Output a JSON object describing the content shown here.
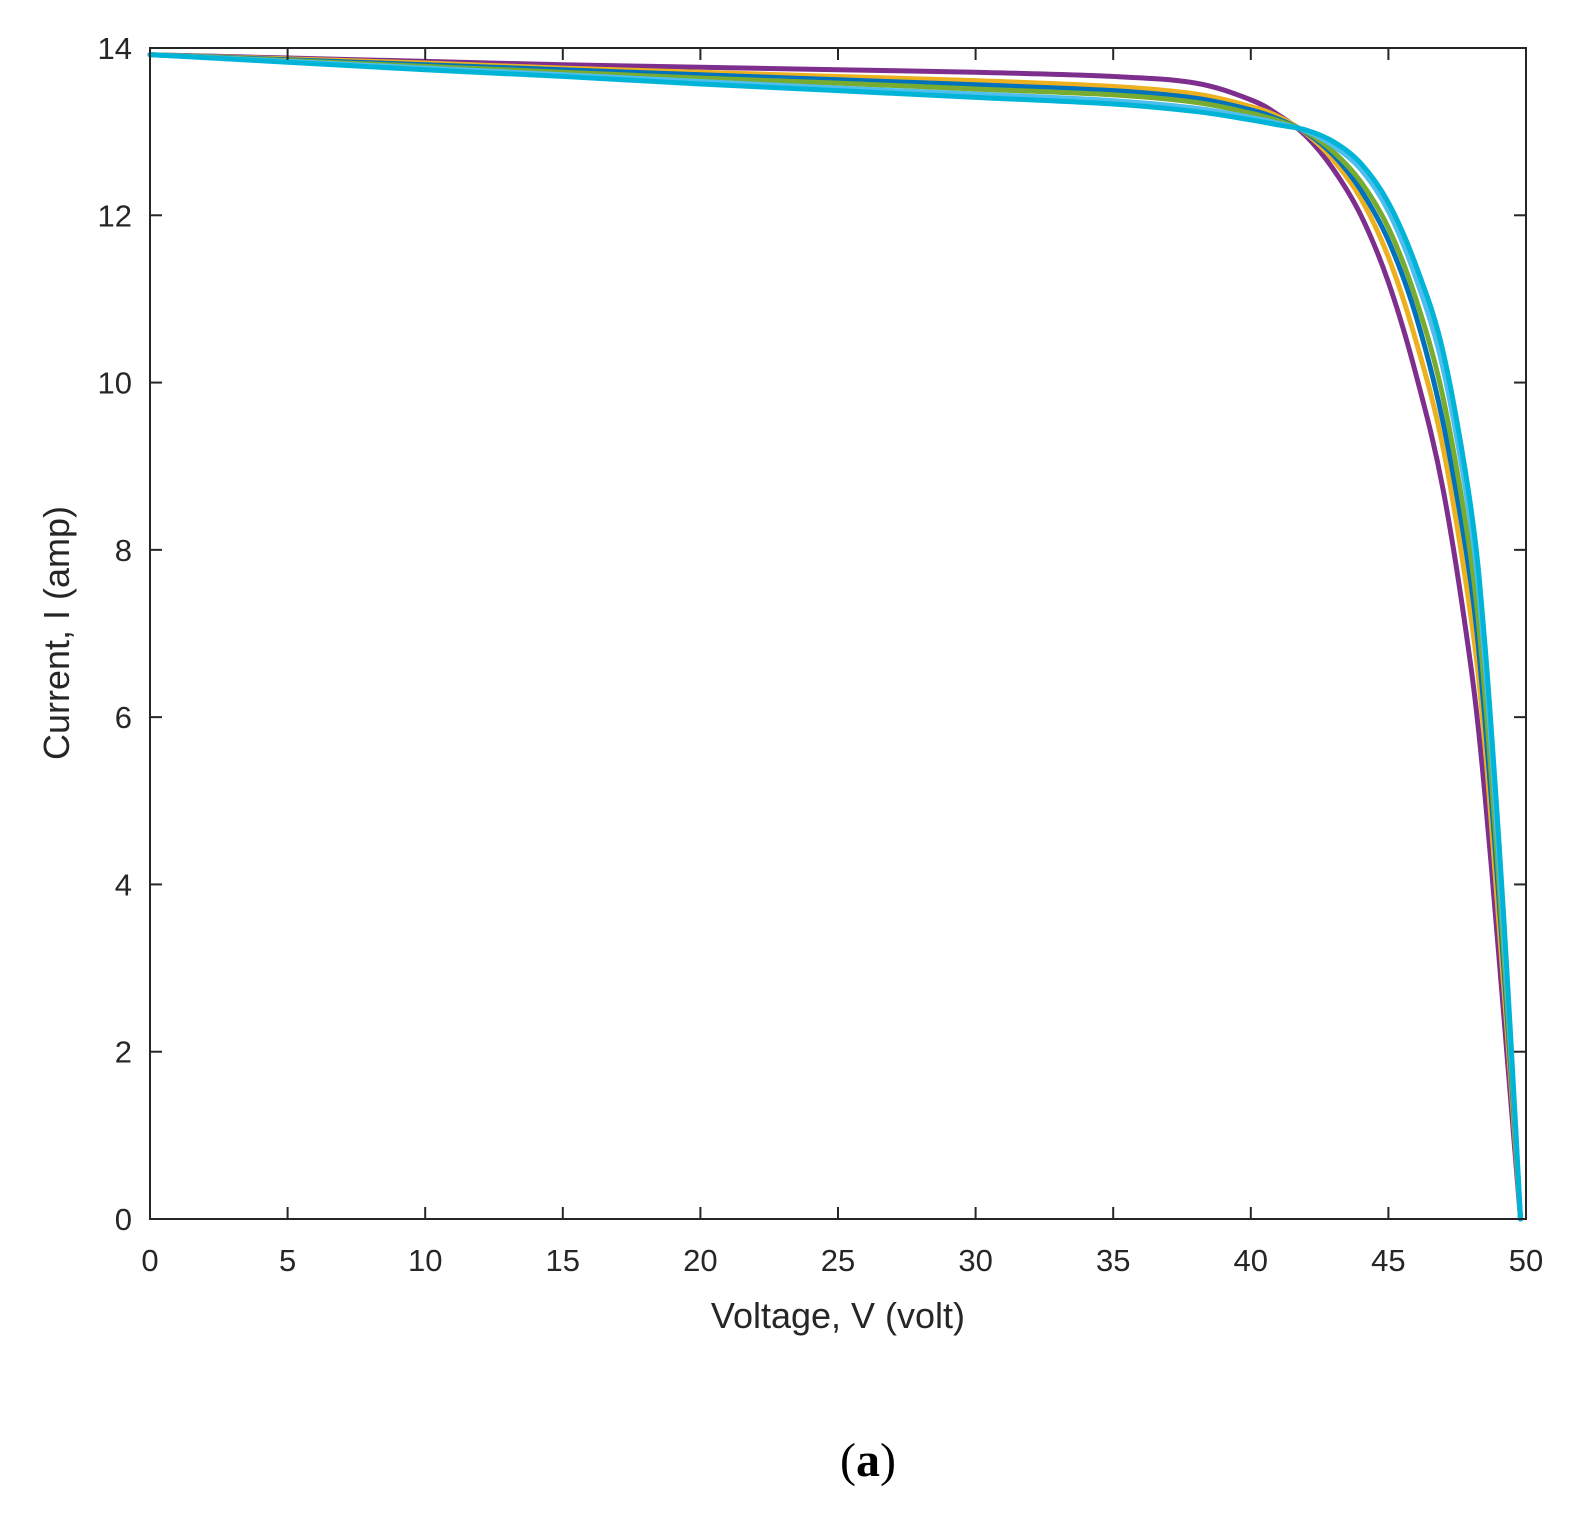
{
  "chart_data": {
    "type": "line",
    "title": "",
    "xlabel": "Voltage, V (volt)",
    "ylabel": "Current, I (amp)",
    "xlim": [
      0,
      50
    ],
    "ylim": [
      0,
      14
    ],
    "xticks": [
      0,
      5,
      10,
      15,
      20,
      25,
      30,
      35,
      40,
      45,
      50
    ],
    "yticks": [
      0,
      2,
      4,
      6,
      8,
      10,
      12,
      14
    ],
    "grid": false,
    "legend": "none",
    "x": [
      0,
      5,
      10,
      15,
      20,
      25,
      30,
      35,
      38,
      40,
      41,
      42,
      43,
      44,
      45,
      46,
      47,
      48,
      48.5,
      49,
      49.3,
      49.6,
      49.8
    ],
    "series": [
      {
        "color": "#7E2F8E",
        "values": [
          13.92,
          13.88,
          13.84,
          13.8,
          13.77,
          13.74,
          13.71,
          13.66,
          13.58,
          13.38,
          13.2,
          12.95,
          12.55,
          12.0,
          11.2,
          10.1,
          8.7,
          6.6,
          5.1,
          3.2,
          2.0,
          0.8,
          0.0
        ]
      },
      {
        "color": "#EDB120",
        "values": [
          13.92,
          13.87,
          13.82,
          13.76,
          13.71,
          13.66,
          13.61,
          13.54,
          13.45,
          13.3,
          13.18,
          12.98,
          12.66,
          12.2,
          11.5,
          10.5,
          9.2,
          7.2,
          5.7,
          3.6,
          2.3,
          0.95,
          0.0
        ]
      },
      {
        "color": "#0072BD",
        "values": [
          13.92,
          13.86,
          13.8,
          13.74,
          13.68,
          13.62,
          13.56,
          13.49,
          13.4,
          13.26,
          13.15,
          12.99,
          12.72,
          12.3,
          11.7,
          10.8,
          9.5,
          7.6,
          6.0,
          3.9,
          2.5,
          1.05,
          0.0
        ]
      },
      {
        "color": "#77AC30",
        "values": [
          13.92,
          13.85,
          13.78,
          13.71,
          13.64,
          13.58,
          13.51,
          13.44,
          13.35,
          13.22,
          13.13,
          13.0,
          12.76,
          12.4,
          11.85,
          11.0,
          9.8,
          7.9,
          6.3,
          4.1,
          2.65,
          1.1,
          0.0
        ]
      },
      {
        "color": "#4DBEEE",
        "values": [
          13.92,
          13.84,
          13.76,
          13.68,
          13.6,
          13.52,
          13.45,
          13.37,
          13.28,
          13.17,
          13.1,
          13.01,
          12.83,
          12.55,
          12.05,
          11.25,
          10.15,
          8.3,
          6.7,
          4.4,
          2.85,
          1.2,
          0.0
        ]
      },
      {
        "color": "#00B4D8",
        "values": [
          13.92,
          13.83,
          13.74,
          13.66,
          13.57,
          13.49,
          13.41,
          13.33,
          13.24,
          13.14,
          13.08,
          13.02,
          12.88,
          12.62,
          12.15,
          11.4,
          10.35,
          8.5,
          6.9,
          4.6,
          3.0,
          1.25,
          0.0
        ]
      }
    ]
  },
  "figure": {
    "caption_open": "(",
    "caption_letter": "a",
    "caption_close": ")"
  }
}
